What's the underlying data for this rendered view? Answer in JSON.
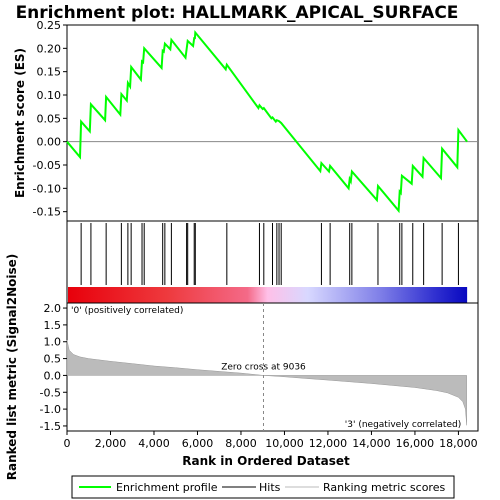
{
  "chart_data": {
    "type": "line",
    "title": "Enrichment plot: HALLMARK_APICAL_SURFACE",
    "es_panel": {
      "ylabel": "Enrichment score (ES)",
      "ylim": [
        -0.17,
        0.25
      ],
      "yticks": [
        -0.15,
        -0.1,
        -0.05,
        0.0,
        0.05,
        0.1,
        0.15,
        0.2,
        0.25
      ],
      "ytick_labels": [
        "-0.15",
        "-0.10",
        "-0.05",
        "0.00",
        "0.05",
        "0.10",
        "0.15",
        "0.20",
        "0.25"
      ]
    },
    "x_axis": {
      "label": "Rank in Ordered Dataset",
      "xlim": [
        0,
        18900
      ],
      "ticks": [
        0,
        2000,
        4000,
        6000,
        8000,
        10000,
        12000,
        14000,
        16000,
        18000
      ],
      "tick_labels": [
        "0",
        "2,000",
        "4,000",
        "6,000",
        "8,000",
        "10,000",
        "12,000",
        "14,000",
        "16,000",
        "18,000"
      ]
    },
    "metric_panel": {
      "ylabel": "Ranked list metric (Signal2Noise)",
      "ylim": [
        -1.65,
        2.15
      ],
      "yticks": [
        -1.5,
        -1.0,
        -0.5,
        0.0,
        0.5,
        1.0,
        1.5,
        2.0
      ],
      "ytick_labels": [
        "-1.5",
        "-1.0",
        "-0.5",
        "0.0",
        "0.5",
        "1.0",
        "1.5",
        "2.0"
      ],
      "zero_cross": 9036,
      "zero_cross_label": "Zero cross at 9036",
      "pos_label": "'0' (positively correlated)",
      "neg_label": "'3' (negatively correlated)",
      "n_genes": 18400,
      "curve_points": [
        [
          0,
          1.05
        ],
        [
          100,
          0.75
        ],
        [
          300,
          0.62
        ],
        [
          600,
          0.55
        ],
        [
          1000,
          0.5
        ],
        [
          2000,
          0.42
        ],
        [
          3000,
          0.35
        ],
        [
          4000,
          0.28
        ],
        [
          5000,
          0.23
        ],
        [
          6000,
          0.17
        ],
        [
          7000,
          0.12
        ],
        [
          8000,
          0.07
        ],
        [
          9036,
          0.0
        ],
        [
          10000,
          -0.04
        ],
        [
          11000,
          -0.09
        ],
        [
          12000,
          -0.14
        ],
        [
          13000,
          -0.19
        ],
        [
          14000,
          -0.24
        ],
        [
          15000,
          -0.3
        ],
        [
          16000,
          -0.36
        ],
        [
          17000,
          -0.45
        ],
        [
          17500,
          -0.52
        ],
        [
          18000,
          -0.65
        ],
        [
          18200,
          -0.78
        ],
        [
          18320,
          -1.0
        ],
        [
          18380,
          -1.48
        ]
      ]
    },
    "hits": [
      650,
      1100,
      1800,
      2500,
      2800,
      2950,
      3450,
      3550,
      4400,
      4500,
      4800,
      5500,
      5550,
      5850,
      5900,
      7350,
      8850,
      9050,
      9450,
      9650,
      9750,
      9850,
      11700,
      12100,
      13000,
      13100,
      14300,
      15300,
      15400,
      15900,
      16400,
      17250,
      18000
    ],
    "es_profile": [
      [
        0,
        0.0
      ],
      [
        600,
        -0.033
      ],
      [
        650,
        0.043
      ],
      [
        1050,
        0.022
      ],
      [
        1100,
        0.08
      ],
      [
        1750,
        0.046
      ],
      [
        1800,
        0.096
      ],
      [
        2450,
        0.058
      ],
      [
        2500,
        0.102
      ],
      [
        2750,
        0.088
      ],
      [
        2800,
        0.126
      ],
      [
        2900,
        0.118
      ],
      [
        2950,
        0.16
      ],
      [
        3400,
        0.133
      ],
      [
        3450,
        0.172
      ],
      [
        3500,
        0.17
      ],
      [
        3550,
        0.2
      ],
      [
        4350,
        0.158
      ],
      [
        4400,
        0.195
      ],
      [
        4450,
        0.193
      ],
      [
        4500,
        0.21
      ],
      [
        4750,
        0.198
      ],
      [
        4800,
        0.218
      ],
      [
        5450,
        0.18
      ],
      [
        5500,
        0.198
      ],
      [
        5550,
        0.216
      ],
      [
        5800,
        0.205
      ],
      [
        5850,
        0.222
      ],
      [
        5880,
        0.222
      ],
      [
        5900,
        0.234
      ],
      [
        7300,
        0.155
      ],
      [
        7350,
        0.165
      ],
      [
        8800,
        0.072
      ],
      [
        8850,
        0.078
      ],
      [
        9000,
        0.07
      ],
      [
        9050,
        0.072
      ],
      [
        9400,
        0.05
      ],
      [
        9450,
        0.052
      ],
      [
        9600,
        0.043
      ],
      [
        9650,
        0.046
      ],
      [
        9750,
        0.044
      ],
      [
        9850,
        0.04
      ],
      [
        11650,
        -0.063
      ],
      [
        11700,
        -0.046
      ],
      [
        12050,
        -0.064
      ],
      [
        12100,
        -0.052
      ],
      [
        12950,
        -0.1
      ],
      [
        13000,
        -0.08
      ],
      [
        13050,
        -0.085
      ],
      [
        13100,
        -0.064
      ],
      [
        14250,
        -0.125
      ],
      [
        14300,
        -0.095
      ],
      [
        15250,
        -0.148
      ],
      [
        15300,
        -0.107
      ],
      [
        15350,
        -0.11
      ],
      [
        15400,
        -0.073
      ],
      [
        15850,
        -0.09
      ],
      [
        15900,
        -0.052
      ],
      [
        16350,
        -0.075
      ],
      [
        16400,
        -0.035
      ],
      [
        17200,
        -0.078
      ],
      [
        17250,
        -0.015
      ],
      [
        17950,
        -0.055
      ],
      [
        18000,
        0.025
      ],
      [
        18400,
        0.0
      ]
    ],
    "legend": [
      {
        "label": "Enrichment profile",
        "color": "#00ff00",
        "kind": "line"
      },
      {
        "label": "Hits",
        "color": "#000000",
        "kind": "line"
      },
      {
        "label": "Ranking metric scores",
        "color": "#bbbbbb",
        "kind": "line"
      }
    ],
    "colors": {
      "profile": "#00ff00",
      "hits": "#000000",
      "metric_fill": "#bbbbbb",
      "pos_text": "#ff0000",
      "neg_text": "#0000cc",
      "gradient": [
        "#e8000b",
        "#f46a6a",
        "#ffc0e0",
        "#d8d8ff",
        "#6f6fe0",
        "#1010c0"
      ]
    }
  }
}
